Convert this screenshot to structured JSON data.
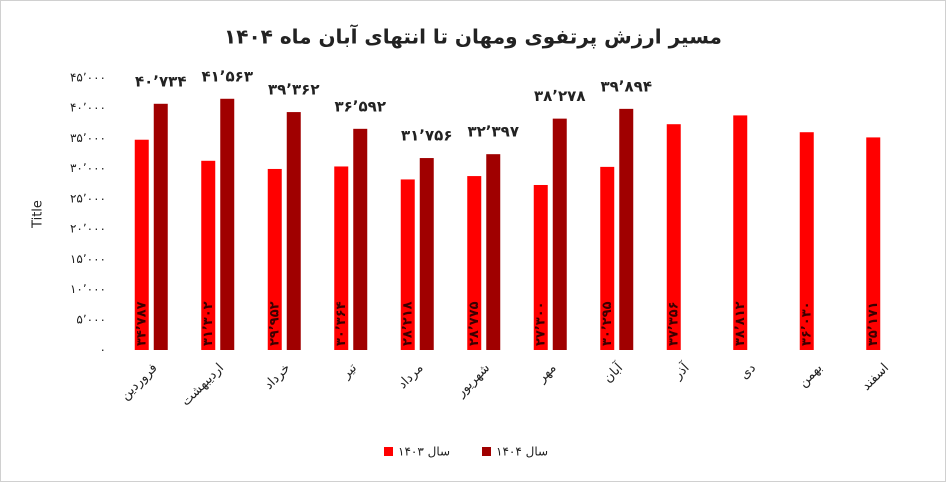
{
  "chart_data": {
    "type": "bar",
    "title": "مسیر ارزش پرتفوی ومهان تا انتهای آبان ماه ۱۴۰۴",
    "y_label": "Title",
    "categories": [
      "فروردین",
      "اردیبهشت",
      "خرداد",
      "تیر",
      "مرداد",
      "شهریور",
      "مهر",
      "آبان",
      "آذر",
      "دی",
      "بهمن",
      "اسفند"
    ],
    "series": [
      {
        "name": "سال ۱۴۰۳",
        "color": "#ff0000",
        "values": [
          34787,
          31302,
          29952,
          30364,
          28218,
          28775,
          27300,
          30295,
          37356,
          38812,
          36030,
          35171
        ],
        "value_labels": [
          "۳۴٬۷۸۷",
          "۳۱٬۳۰۲",
          "۲۹٬۹۵۲",
          "۳۰٬۳۶۴",
          "۲۸٬۲۱۸",
          "۲۸٬۷۷۵",
          "۲۷٬۳۰۰",
          "۳۰٬۲۹۵",
          "۳۷٬۳۵۶",
          "۳۸٬۸۱۲",
          "۳۶٬۰۳۰",
          "۳۵٬۱۷۱"
        ]
      },
      {
        "name": "سال ۱۴۰۴",
        "color": "#a00000",
        "values": [
          40734,
          41563,
          39362,
          36592,
          31756,
          32397,
          38278,
          39894,
          null,
          null,
          null,
          null
        ],
        "value_labels": [
          "۴۰٬۷۳۴",
          "۴۱٬۵۶۳",
          "۳۹٬۳۶۲",
          "۳۶٬۵۹۲",
          "۳۱٬۷۵۶",
          "۳۲٬۳۹۷",
          "۳۸٬۲۷۸",
          "۳۹٬۸۹۴",
          null,
          null,
          null,
          null
        ]
      }
    ],
    "ylim": [
      0,
      45000
    ],
    "yticks": [
      {
        "value": 0,
        "label": "۰"
      },
      {
        "value": 5000,
        "label": "۵٬۰۰۰"
      },
      {
        "value": 10000,
        "label": "۱۰٬۰۰۰"
      },
      {
        "value": 15000,
        "label": "۱۵٬۰۰۰"
      },
      {
        "value": 20000,
        "label": "۲۰٬۰۰۰"
      },
      {
        "value": 25000,
        "label": "۲۵٬۰۰۰"
      },
      {
        "value": 30000,
        "label": "۳۰٬۰۰۰"
      },
      {
        "value": 35000,
        "label": "۳۵٬۰۰۰"
      },
      {
        "value": 40000,
        "label": "۴۰٬۰۰۰"
      },
      {
        "value": 45000,
        "label": "۴۵٬۰۰۰"
      }
    ],
    "grid": false
  }
}
